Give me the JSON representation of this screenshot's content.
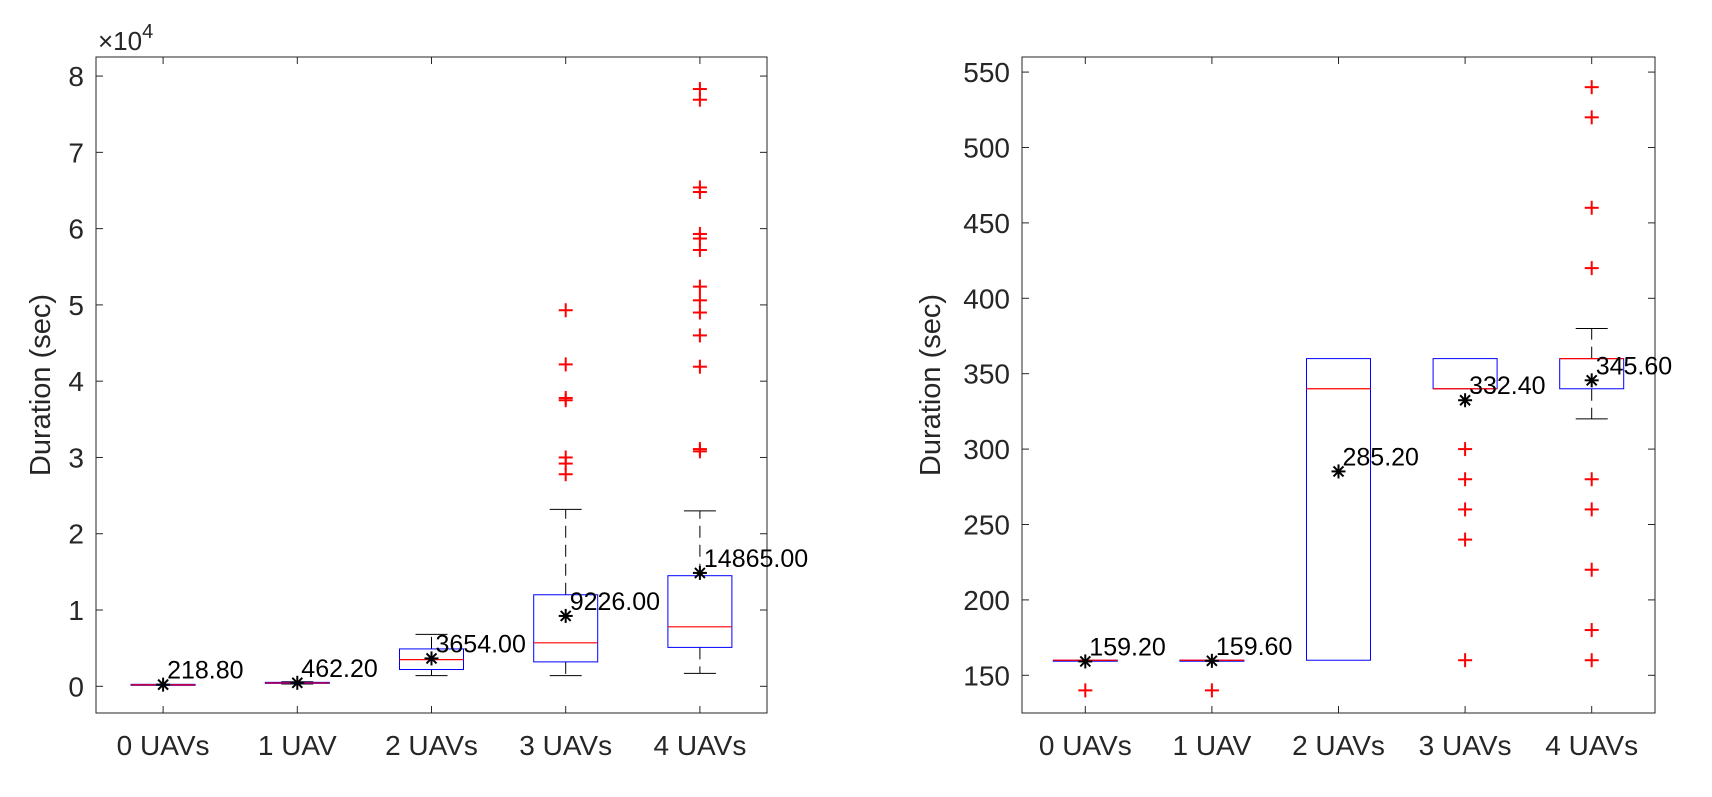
{
  "chart_data": [
    {
      "type": "box",
      "ylabel": "Duration (sec)",
      "y_exponent_label": "×10",
      "y_exponent_power": "4",
      "ylim": [
        -3500,
        82500
      ],
      "yticks": [
        0,
        10000,
        20000,
        30000,
        40000,
        50000,
        60000,
        70000,
        80000
      ],
      "ytick_labels": [
        "0",
        "1",
        "2",
        "3",
        "4",
        "5",
        "6",
        "7",
        "8"
      ],
      "categories": [
        "0 UAVs",
        "1 UAV",
        "2 UAVs",
        "3 UAVs",
        "4 UAVs"
      ],
      "boxes": [
        {
          "q1": 120,
          "median": 190,
          "q3": 260,
          "whisker_low": 120,
          "whisker_high": 260,
          "mean": 218.8,
          "mean_label": "218.80",
          "outliers": []
        },
        {
          "q1": 380,
          "median": 440,
          "q3": 520,
          "whisker_low": 300,
          "whisker_high": 600,
          "mean": 462.2,
          "mean_label": "462.20",
          "outliers": []
        },
        {
          "q1": 2200,
          "median": 3500,
          "q3": 4900,
          "whisker_low": 1400,
          "whisker_high": 6800,
          "mean": 3654.0,
          "mean_label": "3654.00",
          "outliers": []
        },
        {
          "q1": 3200,
          "median": 5700,
          "q3": 12000,
          "whisker_low": 1400,
          "whisker_high": 23200,
          "mean": 9226.0,
          "mean_label": "9226.00",
          "outliers": [
            27800,
            29200,
            30000,
            37500,
            37800,
            42200,
            49300
          ]
        },
        {
          "q1": 5100,
          "median": 7800,
          "q3": 14500,
          "whisker_low": 1700,
          "whisker_high": 23000,
          "mean": 14865.0,
          "mean_label": "14865.00",
          "outliers": [
            30800,
            31100,
            41900,
            46000,
            49000,
            50600,
            52400,
            57200,
            58700,
            59300,
            64800,
            65400,
            76900,
            78300
          ]
        }
      ]
    },
    {
      "type": "box",
      "ylabel": "Duration (sec)",
      "ylim": [
        125,
        560
      ],
      "yticks": [
        150,
        200,
        250,
        300,
        350,
        400,
        450,
        500,
        550
      ],
      "ytick_labels": [
        "150",
        "200",
        "250",
        "300",
        "350",
        "400",
        "450",
        "500",
        "550"
      ],
      "categories": [
        "0 UAVs",
        "1 UAV",
        "2 UAVs",
        "3 UAVs",
        "4 UAVs"
      ],
      "boxes": [
        {
          "q1": 160,
          "median": 160,
          "q3": 160,
          "whisker_low": 160,
          "whisker_high": 160,
          "mean": 159.2,
          "mean_label": "159.20",
          "outliers": [
            140
          ]
        },
        {
          "q1": 160,
          "median": 160,
          "q3": 160,
          "whisker_low": 160,
          "whisker_high": 160,
          "mean": 159.6,
          "mean_label": "159.60",
          "outliers": [
            140
          ]
        },
        {
          "q1": 160,
          "median": 340,
          "q3": 360,
          "whisker_low": 160,
          "whisker_high": 360,
          "mean": 285.2,
          "mean_label": "285.20",
          "outliers": []
        },
        {
          "q1": 340,
          "median": 340,
          "q3": 360,
          "whisker_low": 340,
          "whisker_high": 360,
          "mean": 332.4,
          "mean_label": "332.40",
          "outliers": [
            160,
            240,
            260,
            280,
            300
          ]
        },
        {
          "q1": 340,
          "median": 360,
          "q3": 360,
          "whisker_low": 320,
          "whisker_high": 380,
          "mean": 345.6,
          "mean_label": "345.60",
          "outliers": [
            160,
            180,
            220,
            260,
            280,
            420,
            460,
            520,
            540
          ]
        }
      ]
    }
  ]
}
